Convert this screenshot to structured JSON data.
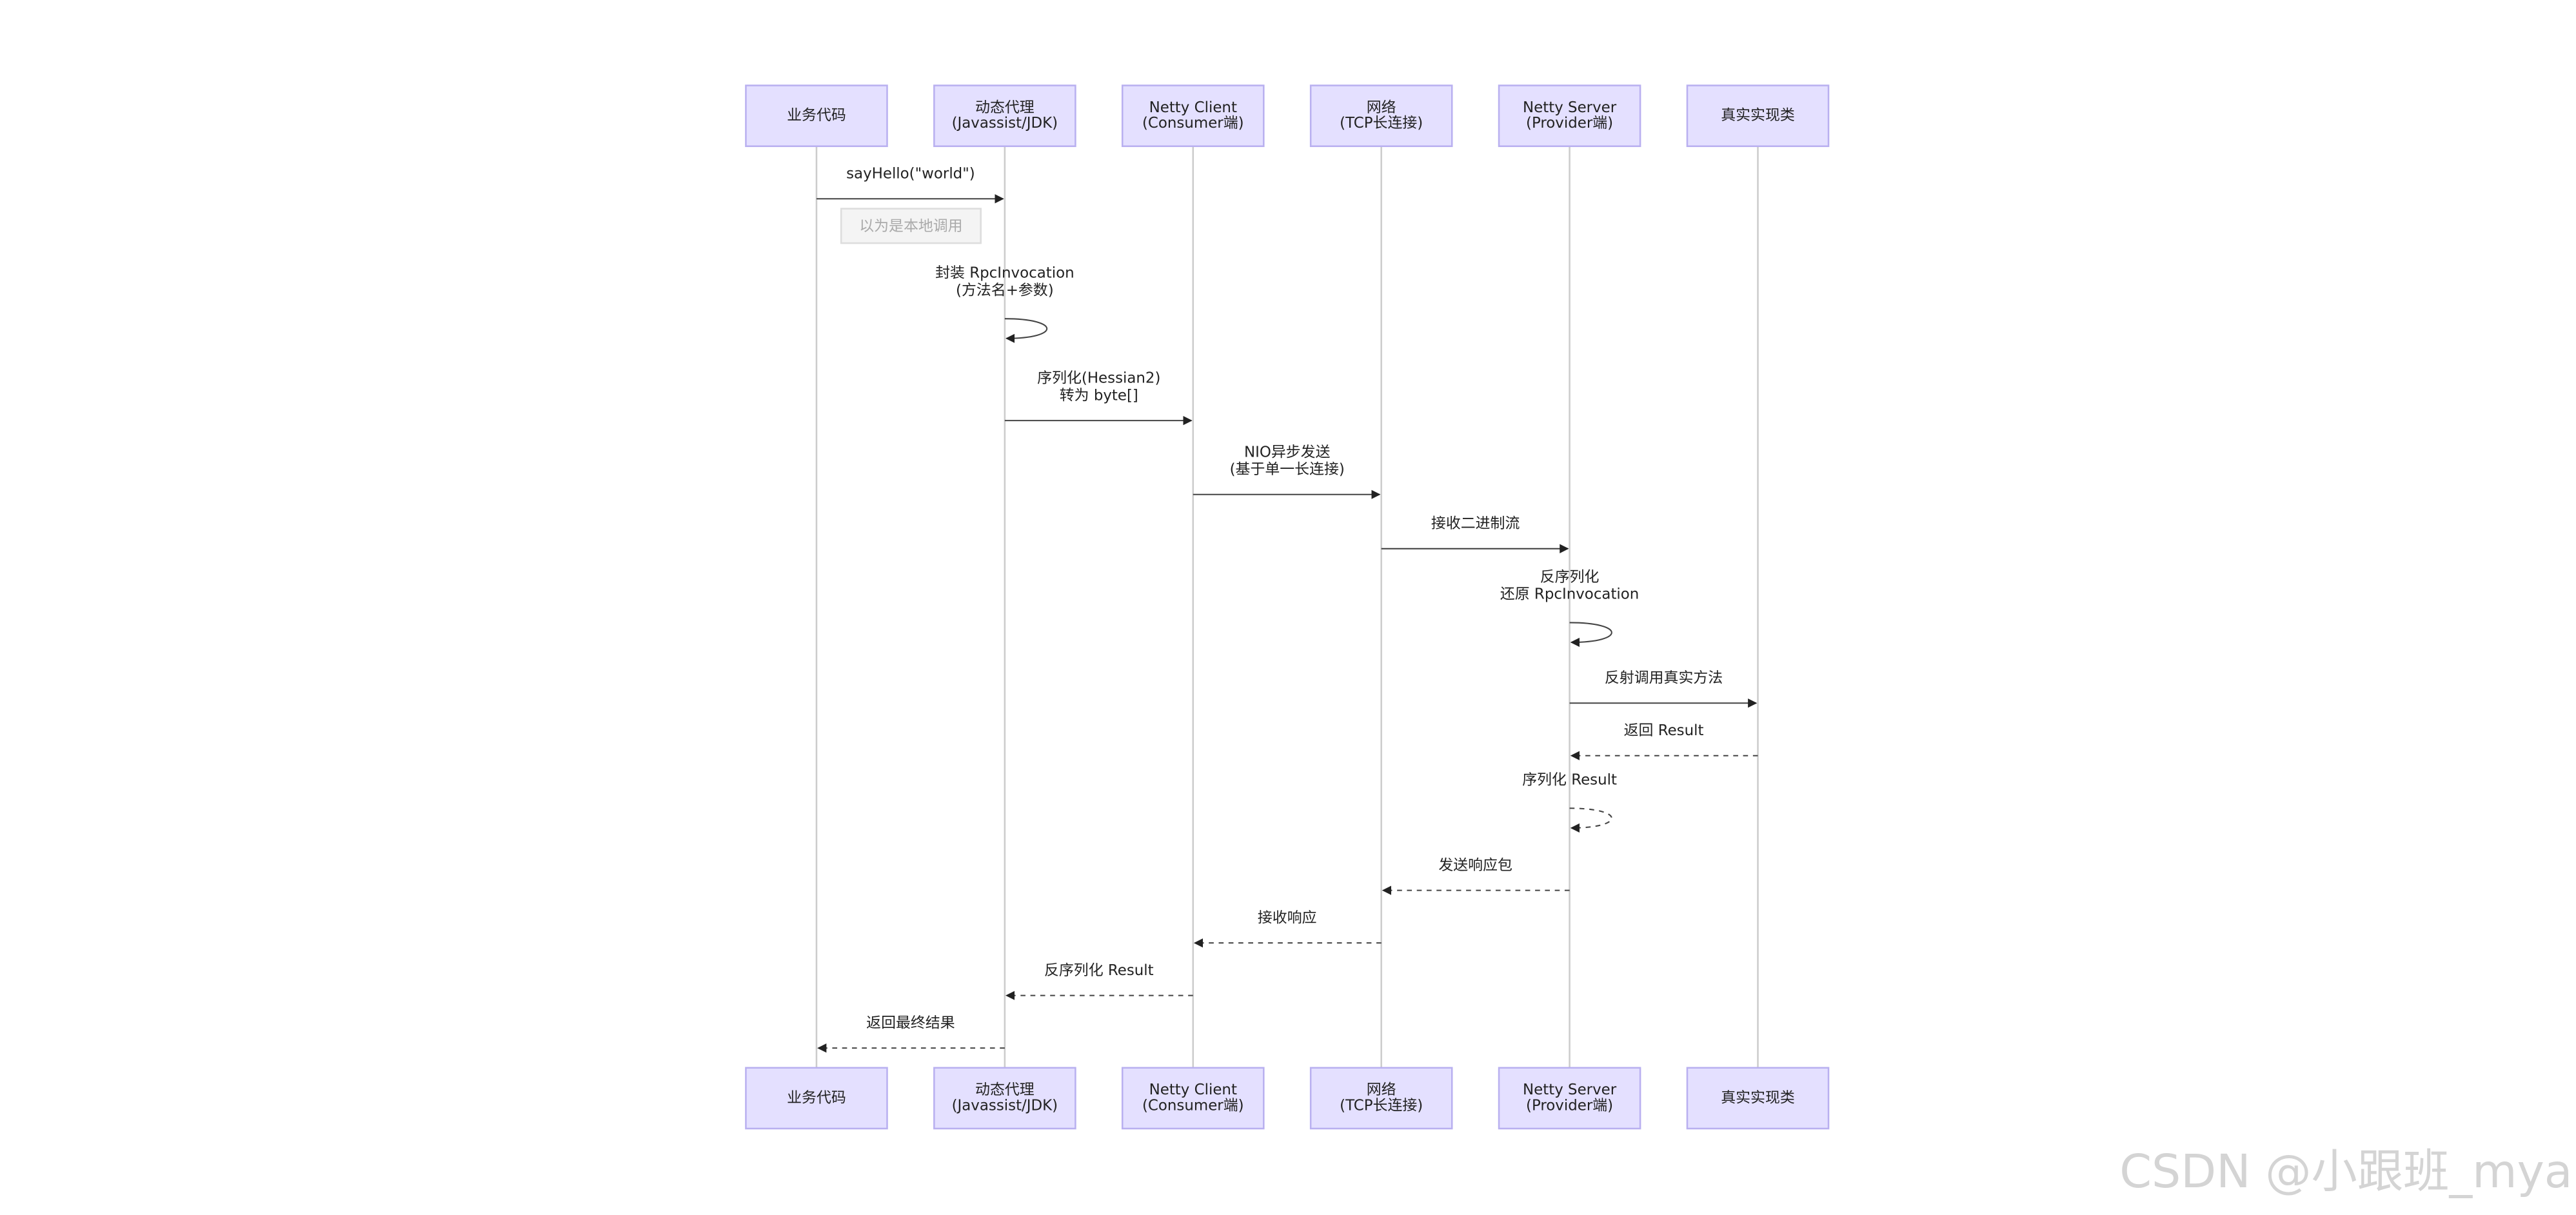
{
  "participants": [
    {
      "lines": [
        "业务代码"
      ]
    },
    {
      "lines": [
        "动态代理",
        "(Javassist/JDK)"
      ]
    },
    {
      "lines": [
        "Netty Client",
        "(Consumer端)"
      ]
    },
    {
      "lines": [
        "网络",
        "(TCP长连接)"
      ]
    },
    {
      "lines": [
        "Netty Server",
        "(Provider端)"
      ]
    },
    {
      "lines": [
        "真实实现类"
      ]
    }
  ],
  "note": "以为是本地调用",
  "messages": [
    {
      "from": 0,
      "to": 1,
      "lines": [
        "sayHello(\"world\")"
      ],
      "dashed": false
    },
    {
      "from": 1,
      "to": 1,
      "lines": [
        "封装 RpcInvocation",
        "(方法名+参数)"
      ],
      "dashed": false
    },
    {
      "from": 1,
      "to": 2,
      "lines": [
        "序列化(Hessian2)",
        "转为 byte[]"
      ],
      "dashed": false
    },
    {
      "from": 2,
      "to": 3,
      "lines": [
        "NIO异步发送",
        "(基于单一长连接)"
      ],
      "dashed": false
    },
    {
      "from": 3,
      "to": 4,
      "lines": [
        "接收二进制流"
      ],
      "dashed": false
    },
    {
      "from": 4,
      "to": 4,
      "lines": [
        "反序列化",
        "还原 RpcInvocation"
      ],
      "dashed": false
    },
    {
      "from": 4,
      "to": 5,
      "lines": [
        "反射调用真实方法"
      ],
      "dashed": false
    },
    {
      "from": 5,
      "to": 4,
      "lines": [
        "返回 Result"
      ],
      "dashed": true
    },
    {
      "from": 4,
      "to": 4,
      "lines": [
        "序列化 Result"
      ],
      "dashed": true
    },
    {
      "from": 4,
      "to": 3,
      "lines": [
        "发送响应包"
      ],
      "dashed": true
    },
    {
      "from": 3,
      "to": 2,
      "lines": [
        "接收响应"
      ],
      "dashed": true
    },
    {
      "from": 2,
      "to": 1,
      "lines": [
        "反序列化 Result"
      ],
      "dashed": true
    },
    {
      "from": 1,
      "to": 0,
      "lines": [
        "返回最终结果"
      ],
      "dashed": true
    }
  ],
  "watermark": "CSDN @小跟班_mya"
}
